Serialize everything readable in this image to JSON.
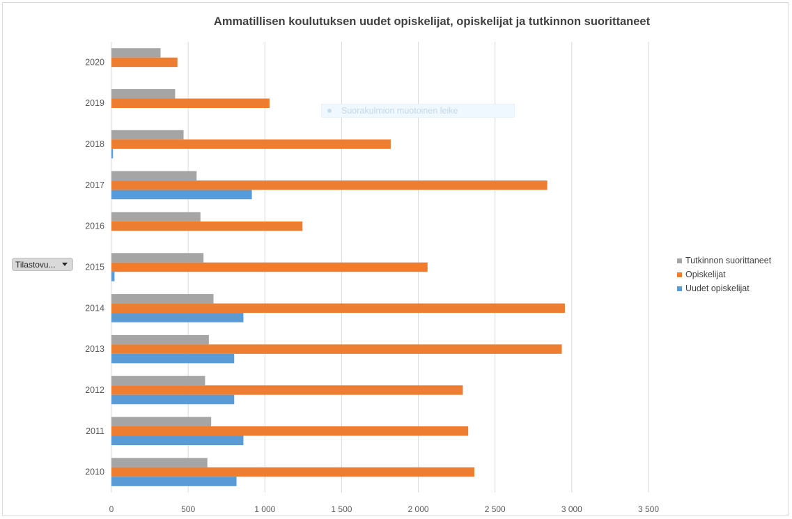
{
  "chart_data": {
    "type": "bar",
    "orientation": "horizontal",
    "title": "Ammatillisen koulutuksen uudet opiskelijat, opiskelijat ja tutkinnon suorittaneet",
    "categories": [
      "2010",
      "2011",
      "2012",
      "2013",
      "2014",
      "2015",
      "2016",
      "2017",
      "2018",
      "2019",
      "2020"
    ],
    "series": [
      {
        "name": "Tutkinnon suorittaneet",
        "color": "#a5a5a5",
        "values": [
          625,
          650,
          610,
          635,
          665,
          600,
          580,
          555,
          470,
          415,
          320
        ]
      },
      {
        "name": "Opiskelijat",
        "color": "#ed7d31",
        "values": [
          2365,
          2325,
          2290,
          2935,
          2955,
          2060,
          1245,
          2840,
          1820,
          1030,
          430
        ]
      },
      {
        "name": "Uudet opiskelijat",
        "color": "#5b9bd5",
        "values": [
          815,
          860,
          800,
          800,
          860,
          20,
          0,
          915,
          10,
          0,
          0
        ]
      }
    ],
    "xlim": [
      0,
      3500
    ],
    "ticks": [
      0,
      500,
      1000,
      1500,
      2000,
      2500,
      3000,
      3500
    ],
    "tick_labels": [
      "0",
      "500",
      "1 000",
      "1 500",
      "2 000",
      "2 500",
      "3 000",
      "3 500"
    ],
    "grid": true,
    "legend_position": "right"
  },
  "filter": {
    "label": "Tilastovu..."
  },
  "overlay": {
    "text": "Suorakulmion muotoinen leike"
  }
}
